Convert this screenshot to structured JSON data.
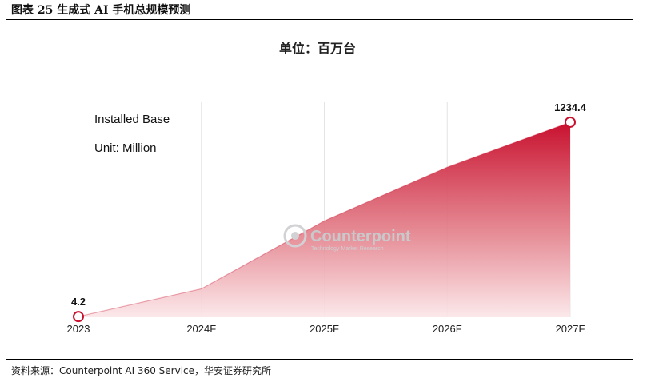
{
  "figure_title": "图表 25 生成式 AI 手机总规模预测",
  "source": "资料来源：Counterpoint AI 360 Service，华安证券研究所",
  "colors": {
    "line": "#c8102e",
    "area_top": "#c8102e",
    "area_bottom": "#fbe6e8",
    "grid": "#e4e4e4"
  },
  "chart_data": {
    "type": "area",
    "title": "单位：百万台",
    "annotations": [
      "Installed Base",
      "Unit: Million"
    ],
    "watermark": {
      "text": "Counterpoint",
      "sub": "Technology Market Research"
    },
    "categories": [
      "2023",
      "2024F",
      "2025F",
      "2026F",
      "2027F"
    ],
    "series": [
      {
        "values": [
          4.2,
          180,
          610,
          950,
          1234.4
        ]
      }
    ],
    "labeled_points": [
      {
        "category": "2023",
        "label": "4.2"
      },
      {
        "category": "2027F",
        "label": "1234.4"
      }
    ],
    "ylim": [
      0,
      1300
    ],
    "grid": true
  }
}
